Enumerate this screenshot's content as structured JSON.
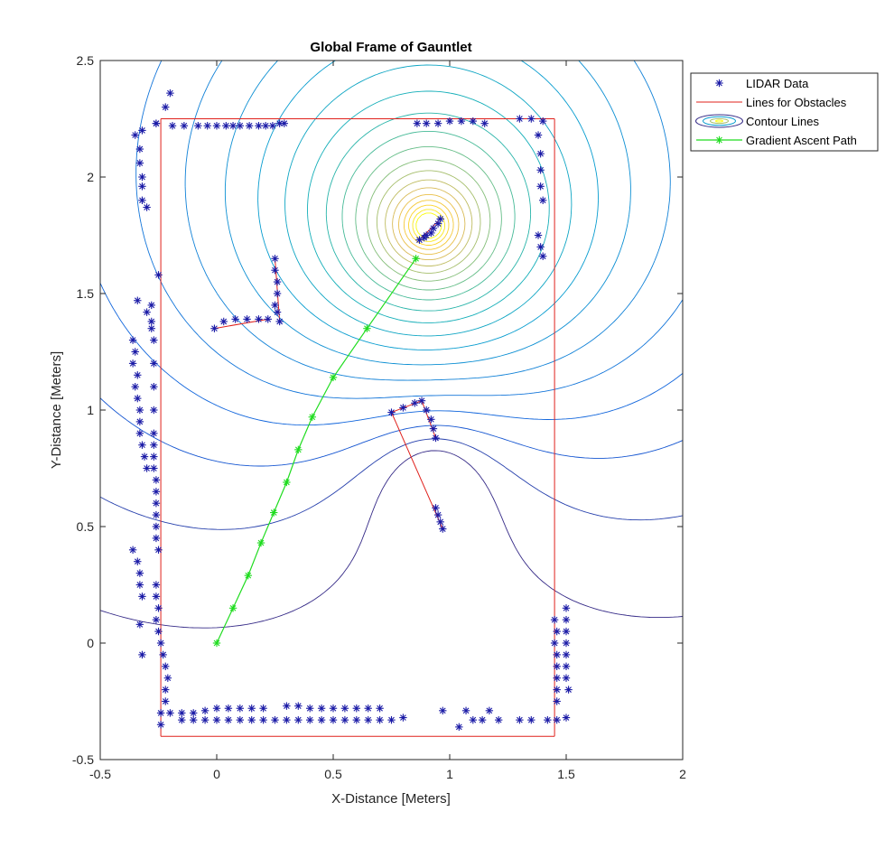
{
  "chart_data": {
    "type": "scatter",
    "title": "Global Frame of Gauntlet",
    "xlabel": "X-Distance [Meters]",
    "ylabel": "Y-Distance [Meters]",
    "xlim": [
      -0.5,
      2
    ],
    "ylim": [
      -0.5,
      2.5
    ],
    "xticks": [
      "-0.5",
      "0",
      "0.5",
      "1",
      "1.5",
      "2"
    ],
    "yticks": [
      "-0.5",
      "0",
      "0.5",
      "1",
      "1.5",
      "2",
      "2.5"
    ],
    "legend_position": "top-right",
    "colors": {
      "lidar": "#1a1aa6",
      "obstacles": "#e0201b",
      "gradient": "#1fdc1f",
      "axes": "#262626"
    },
    "series": [
      {
        "name": "LIDAR Data",
        "kind": "scatter",
        "marker": "asterisk",
        "points": [
          [
            -0.35,
            2.18
          ],
          [
            -0.32,
            2.2
          ],
          [
            -0.26,
            2.23
          ],
          [
            -0.22,
            2.3
          ],
          [
            -0.2,
            2.36
          ],
          [
            -0.33,
            2.12
          ],
          [
            -0.33,
            2.06
          ],
          [
            -0.32,
            2.0
          ],
          [
            -0.32,
            1.96
          ],
          [
            -0.32,
            1.9
          ],
          [
            -0.3,
            1.87
          ],
          [
            -0.26,
            2.23
          ],
          [
            -0.19,
            2.22
          ],
          [
            -0.14,
            2.22
          ],
          [
            -0.08,
            2.22
          ],
          [
            -0.04,
            2.22
          ],
          [
            0.0,
            2.22
          ],
          [
            0.04,
            2.22
          ],
          [
            0.07,
            2.22
          ],
          [
            0.1,
            2.22
          ],
          [
            0.14,
            2.22
          ],
          [
            0.18,
            2.22
          ],
          [
            0.21,
            2.22
          ],
          [
            0.24,
            2.22
          ],
          [
            0.27,
            2.23
          ],
          [
            0.29,
            2.23
          ],
          [
            0.86,
            2.23
          ],
          [
            0.9,
            2.23
          ],
          [
            0.95,
            2.23
          ],
          [
            1.0,
            2.24
          ],
          [
            1.05,
            2.24
          ],
          [
            1.1,
            2.24
          ],
          [
            1.15,
            2.23
          ],
          [
            1.3,
            2.25
          ],
          [
            1.35,
            2.25
          ],
          [
            1.4,
            2.24
          ],
          [
            1.38,
            2.18
          ],
          [
            1.39,
            2.1
          ],
          [
            1.39,
            2.03
          ],
          [
            1.39,
            1.96
          ],
          [
            1.4,
            1.9
          ],
          [
            1.38,
            1.75
          ],
          [
            1.39,
            1.7
          ],
          [
            1.4,
            1.66
          ],
          [
            0.87,
            1.73
          ],
          [
            0.89,
            1.74
          ],
          [
            0.9,
            1.75
          ],
          [
            0.92,
            1.76
          ],
          [
            0.93,
            1.78
          ],
          [
            0.95,
            1.8
          ],
          [
            0.96,
            1.82
          ],
          [
            0.25,
            1.65
          ],
          [
            0.25,
            1.6
          ],
          [
            0.26,
            1.55
          ],
          [
            0.26,
            1.5
          ],
          [
            0.25,
            1.45
          ],
          [
            0.26,
            1.42
          ],
          [
            0.27,
            1.38
          ],
          [
            -0.01,
            1.35
          ],
          [
            0.03,
            1.38
          ],
          [
            0.08,
            1.39
          ],
          [
            0.13,
            1.39
          ],
          [
            0.18,
            1.39
          ],
          [
            0.22,
            1.39
          ],
          [
            -0.25,
            1.58
          ],
          [
            -0.34,
            1.47
          ],
          [
            -0.3,
            1.42
          ],
          [
            -0.28,
            1.45
          ],
          [
            -0.28,
            1.38
          ],
          [
            -0.36,
            1.3
          ],
          [
            -0.35,
            1.25
          ],
          [
            -0.36,
            1.2
          ],
          [
            -0.34,
            1.15
          ],
          [
            -0.35,
            1.1
          ],
          [
            -0.34,
            1.05
          ],
          [
            -0.33,
            1.0
          ],
          [
            -0.33,
            0.95
          ],
          [
            -0.33,
            0.9
          ],
          [
            -0.32,
            0.85
          ],
          [
            -0.31,
            0.8
          ],
          [
            -0.3,
            0.75
          ],
          [
            -0.28,
            1.35
          ],
          [
            -0.27,
            1.3
          ],
          [
            -0.27,
            1.2
          ],
          [
            -0.27,
            1.1
          ],
          [
            -0.27,
            1.0
          ],
          [
            -0.27,
            0.9
          ],
          [
            -0.27,
            0.85
          ],
          [
            -0.27,
            0.8
          ],
          [
            -0.27,
            0.75
          ],
          [
            -0.26,
            0.7
          ],
          [
            -0.26,
            0.65
          ],
          [
            -0.26,
            0.6
          ],
          [
            -0.26,
            0.55
          ],
          [
            -0.26,
            0.5
          ],
          [
            -0.26,
            0.45
          ],
          [
            -0.25,
            0.4
          ],
          [
            -0.36,
            0.4
          ],
          [
            -0.34,
            0.35
          ],
          [
            -0.33,
            0.3
          ],
          [
            -0.33,
            0.25
          ],
          [
            -0.32,
            0.2
          ],
          [
            -0.26,
            0.25
          ],
          [
            -0.26,
            0.2
          ],
          [
            -0.25,
            0.15
          ],
          [
            -0.26,
            0.1
          ],
          [
            -0.25,
            0.05
          ],
          [
            -0.24,
            0.0
          ],
          [
            -0.23,
            -0.05
          ],
          [
            -0.33,
            0.08
          ],
          [
            -0.32,
            -0.05
          ],
          [
            -0.22,
            -0.1
          ],
          [
            -0.21,
            -0.15
          ],
          [
            -0.22,
            -0.2
          ],
          [
            -0.22,
            -0.25
          ],
          [
            -0.24,
            -0.3
          ],
          [
            -0.24,
            -0.35
          ],
          [
            -0.2,
            -0.3
          ],
          [
            -0.15,
            -0.3
          ],
          [
            -0.1,
            -0.3
          ],
          [
            -0.05,
            -0.29
          ],
          [
            0.0,
            -0.28
          ],
          [
            0.05,
            -0.28
          ],
          [
            0.1,
            -0.28
          ],
          [
            0.15,
            -0.28
          ],
          [
            0.2,
            -0.28
          ],
          [
            0.3,
            -0.27
          ],
          [
            0.35,
            -0.27
          ],
          [
            0.4,
            -0.28
          ],
          [
            0.45,
            -0.28
          ],
          [
            0.5,
            -0.28
          ],
          [
            0.55,
            -0.28
          ],
          [
            0.6,
            -0.28
          ],
          [
            0.65,
            -0.28
          ],
          [
            0.7,
            -0.28
          ],
          [
            -0.15,
            -0.33
          ],
          [
            -0.1,
            -0.33
          ],
          [
            -0.05,
            -0.33
          ],
          [
            0.0,
            -0.33
          ],
          [
            0.05,
            -0.33
          ],
          [
            0.1,
            -0.33
          ],
          [
            0.15,
            -0.33
          ],
          [
            0.2,
            -0.33
          ],
          [
            0.25,
            -0.33
          ],
          [
            0.3,
            -0.33
          ],
          [
            0.35,
            -0.33
          ],
          [
            0.4,
            -0.33
          ],
          [
            0.45,
            -0.33
          ],
          [
            0.5,
            -0.33
          ],
          [
            0.55,
            -0.33
          ],
          [
            0.6,
            -0.33
          ],
          [
            0.65,
            -0.33
          ],
          [
            0.7,
            -0.33
          ],
          [
            0.75,
            -0.33
          ],
          [
            0.8,
            -0.32
          ],
          [
            0.97,
            -0.29
          ],
          [
            1.07,
            -0.29
          ],
          [
            1.17,
            -0.29
          ],
          [
            1.1,
            -0.33
          ],
          [
            1.14,
            -0.33
          ],
          [
            1.21,
            -0.33
          ],
          [
            1.04,
            -0.36
          ],
          [
            1.3,
            -0.33
          ],
          [
            1.35,
            -0.33
          ],
          [
            1.42,
            -0.33
          ],
          [
            1.46,
            -0.33
          ],
          [
            1.5,
            -0.32
          ],
          [
            1.45,
            0.1
          ],
          [
            1.46,
            0.05
          ],
          [
            1.45,
            0.0
          ],
          [
            1.46,
            -0.05
          ],
          [
            1.46,
            -0.1
          ],
          [
            1.46,
            -0.15
          ],
          [
            1.46,
            -0.2
          ],
          [
            1.46,
            -0.25
          ],
          [
            1.5,
            0.15
          ],
          [
            1.5,
            0.1
          ],
          [
            1.5,
            0.05
          ],
          [
            1.5,
            0.0
          ],
          [
            1.5,
            -0.05
          ],
          [
            1.5,
            -0.1
          ],
          [
            1.5,
            -0.15
          ],
          [
            1.51,
            -0.2
          ],
          [
            0.75,
            0.99
          ],
          [
            0.8,
            1.01
          ],
          [
            0.85,
            1.03
          ],
          [
            0.88,
            1.04
          ],
          [
            0.9,
            1.0
          ],
          [
            0.92,
            0.96
          ],
          [
            0.93,
            0.92
          ],
          [
            0.94,
            0.88
          ],
          [
            0.94,
            0.58
          ],
          [
            0.95,
            0.55
          ],
          [
            0.96,
            0.52
          ],
          [
            0.97,
            0.49
          ]
        ]
      },
      {
        "name": "Lines for Obstacles",
        "kind": "lines",
        "segments": [
          [
            [
              -0.24,
              2.25
            ],
            [
              1.45,
              2.25
            ]
          ],
          [
            [
              1.45,
              2.25
            ],
            [
              1.45,
              -0.4
            ]
          ],
          [
            [
              1.45,
              -0.4
            ],
            [
              -0.24,
              -0.4
            ]
          ],
          [
            [
              -0.24,
              -0.4
            ],
            [
              -0.24,
              2.25
            ]
          ],
          [
            [
              0.75,
              0.99
            ],
            [
              0.97,
              0.49
            ]
          ],
          [
            [
              0.75,
              0.99
            ],
            [
              0.88,
              1.04
            ]
          ],
          [
            [
              0.88,
              1.04
            ],
            [
              0.94,
              0.88
            ]
          ],
          [
            [
              -0.01,
              1.35
            ],
            [
              0.22,
              1.39
            ]
          ],
          [
            [
              0.25,
              1.65
            ],
            [
              0.27,
              1.38
            ]
          ],
          [
            [
              0.87,
              1.73
            ],
            [
              0.96,
              1.82
            ]
          ]
        ]
      },
      {
        "name": "Contour Lines",
        "kind": "contour",
        "source": [
          0.91,
          1.79
        ],
        "sinks": [
          [
            0.935,
            0.7
          ]
        ]
      },
      {
        "name": "Gradient Ascent Path",
        "kind": "line",
        "marker": "asterisk",
        "points": [
          [
            0,
            0
          ],
          [
            0.07,
            0.15
          ],
          [
            0.135,
            0.29
          ],
          [
            0.19,
            0.43
          ],
          [
            0.245,
            0.56
          ],
          [
            0.3,
            0.69
          ],
          [
            0.35,
            0.83
          ],
          [
            0.41,
            0.97
          ],
          [
            0.5,
            1.14
          ],
          [
            0.645,
            1.35
          ],
          [
            0.855,
            1.65
          ]
        ]
      }
    ]
  }
}
